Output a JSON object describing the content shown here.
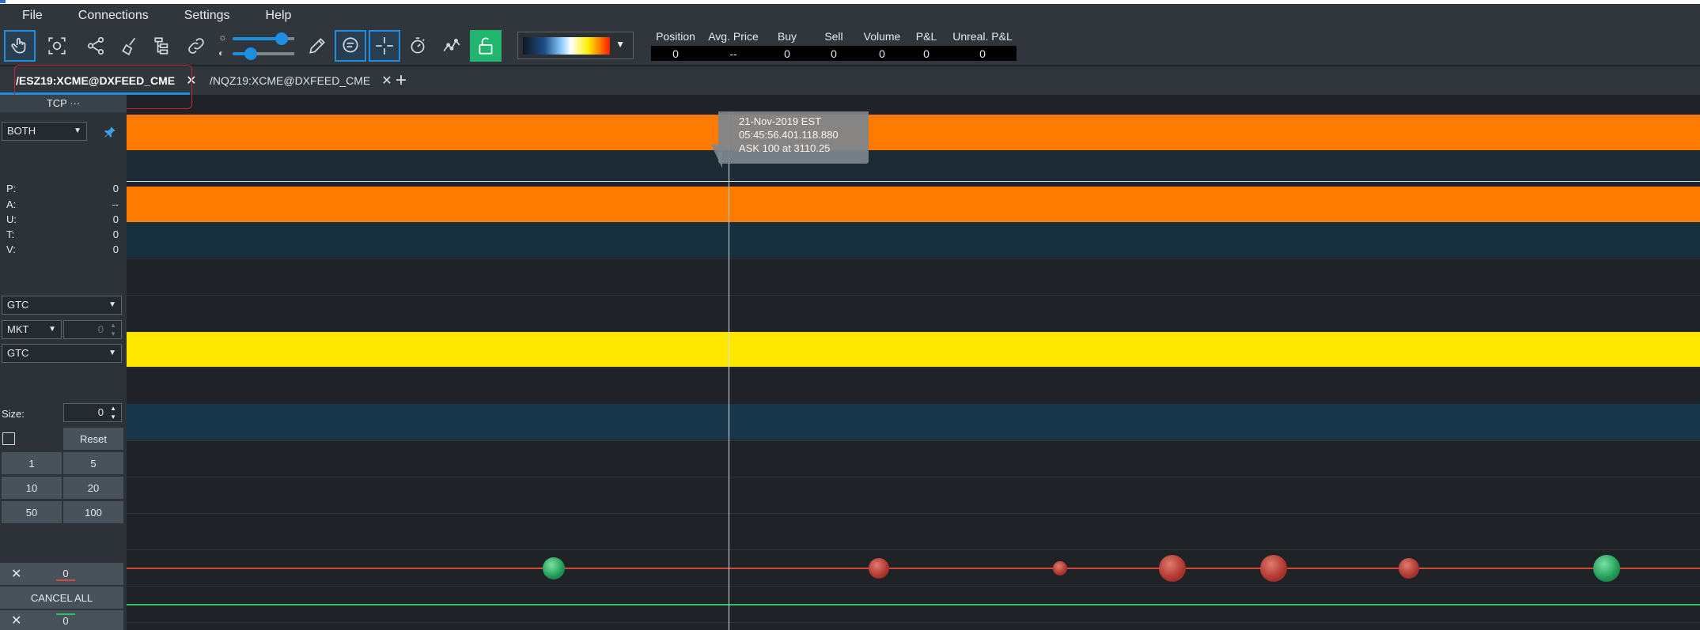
{
  "menu": {
    "file": "File",
    "connections": "Connections",
    "settings": "Settings",
    "help": "Help"
  },
  "toolbar": {
    "icons": [
      "hand-pointer-icon",
      "zoom-fit-icon",
      "share-icon",
      "broom-icon",
      "tree-icon",
      "link-icon",
      "brightness-icon",
      "contrast-icon",
      "pencil-icon",
      "comment-icon",
      "crosshair-icon",
      "stopwatch-icon",
      "line-chart-icon",
      "unlock-icon"
    ],
    "brightness_level": 0.8,
    "contrast_level": 0.3,
    "gradient_colors": [
      "#101820",
      "#1f4e8a",
      "#8fd0ff",
      "#ffffff",
      "#ffee00",
      "#ff1a00"
    ]
  },
  "pnl": {
    "headers": [
      "Position",
      "Avg. Price",
      "Buy",
      "Sell",
      "Volume",
      "P&L",
      "Unreal. P&L"
    ],
    "values": [
      "0",
      "--",
      "0",
      "0",
      "0",
      "0",
      "0"
    ]
  },
  "tabs": [
    {
      "label": "/ESZ19:XCME@DXFEED_CME",
      "active": true
    },
    {
      "label": "/NQZ19:XCME@DXFEED_CME",
      "active": false
    }
  ],
  "sidebar": {
    "tcp": "TCP ···",
    "side_select": "BOTH",
    "stats": [
      {
        "k": "P:",
        "v": "0"
      },
      {
        "k": "A:",
        "v": "--"
      },
      {
        "k": "U:",
        "v": "0"
      },
      {
        "k": "T:",
        "v": "0"
      },
      {
        "k": "V:",
        "v": "0"
      }
    ],
    "tif1": "GTC",
    "order_type": "MKT",
    "price_value": "0",
    "tif2": "GTC",
    "size_label": "Size:",
    "size_value": "0",
    "reset": "Reset",
    "quick_sizes": [
      "1",
      "5",
      "10",
      "20",
      "50",
      "100"
    ],
    "sell_count": "0",
    "cancel_all": "CANCEL ALL",
    "buy_count": "0"
  },
  "tooltip": {
    "date": "21-Nov-2019 EST",
    "time": "05:45:56.401.118.880",
    "detail": "ASK 100 at 3110.25"
  },
  "colors": {
    "orange": "#ff7a00",
    "yellow": "#ffe800",
    "teal": "#17303d",
    "red_line": "#d1493b",
    "green_line": "#2fbf64"
  }
}
